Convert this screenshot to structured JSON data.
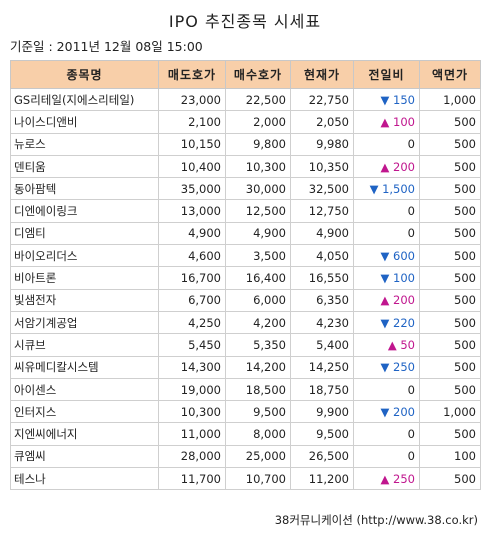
{
  "title": "IPO 추진종목 시세표",
  "base_date": "기준일 : 2011년 12월 08일 15:00",
  "headers": [
    "종목명",
    "매도호가",
    "매수호가",
    "현재가",
    "전일비",
    "액면가"
  ],
  "rows": [
    {
      "name": "GS리테일(지에스리테일)",
      "ask": "23,000",
      "bid": "22,500",
      "price": "22,750",
      "dir": "down",
      "change": "150",
      "par": "1,000"
    },
    {
      "name": "나이스디앤비",
      "ask": "2,100",
      "bid": "2,000",
      "price": "2,050",
      "dir": "up",
      "change": "100",
      "par": "500"
    },
    {
      "name": "뉴로스",
      "ask": "10,150",
      "bid": "9,800",
      "price": "9,980",
      "dir": "",
      "change": "0",
      "par": "500"
    },
    {
      "name": "덴티움",
      "ask": "10,400",
      "bid": "10,300",
      "price": "10,350",
      "dir": "up",
      "change": "200",
      "par": "500"
    },
    {
      "name": "동아팜텍",
      "ask": "35,000",
      "bid": "30,000",
      "price": "32,500",
      "dir": "down",
      "change": "1,500",
      "par": "500"
    },
    {
      "name": "디엔에이링크",
      "ask": "13,000",
      "bid": "12,500",
      "price": "12,750",
      "dir": "",
      "change": "0",
      "par": "500"
    },
    {
      "name": "디엠티",
      "ask": "4,900",
      "bid": "4,900",
      "price": "4,900",
      "dir": "",
      "change": "0",
      "par": "500"
    },
    {
      "name": "바이오리더스",
      "ask": "4,600",
      "bid": "3,500",
      "price": "4,050",
      "dir": "down",
      "change": "600",
      "par": "500"
    },
    {
      "name": "비아트론",
      "ask": "16,700",
      "bid": "16,400",
      "price": "16,550",
      "dir": "down",
      "change": "100",
      "par": "500"
    },
    {
      "name": "빛샘전자",
      "ask": "6,700",
      "bid": "6,000",
      "price": "6,350",
      "dir": "up",
      "change": "200",
      "par": "500"
    },
    {
      "name": "서암기계공업",
      "ask": "4,250",
      "bid": "4,200",
      "price": "4,230",
      "dir": "down",
      "change": "220",
      "par": "500"
    },
    {
      "name": "시큐브",
      "ask": "5,450",
      "bid": "5,350",
      "price": "5,400",
      "dir": "up",
      "change": "50",
      "par": "500"
    },
    {
      "name": "씨유메디칼시스템",
      "ask": "14,300",
      "bid": "14,200",
      "price": "14,250",
      "dir": "down",
      "change": "250",
      "par": "500"
    },
    {
      "name": "아이센스",
      "ask": "19,000",
      "bid": "18,500",
      "price": "18,750",
      "dir": "",
      "change": "0",
      "par": "500"
    },
    {
      "name": "인터지스",
      "ask": "10,300",
      "bid": "9,500",
      "price": "9,900",
      "dir": "down",
      "change": "200",
      "par": "1,000"
    },
    {
      "name": "지엔씨에너지",
      "ask": "11,000",
      "bid": "8,000",
      "price": "9,500",
      "dir": "",
      "change": "0",
      "par": "500"
    },
    {
      "name": "큐엠씨",
      "ask": "28,000",
      "bid": "25,000",
      "price": "26,500",
      "dir": "",
      "change": "0",
      "par": "100"
    },
    {
      "name": "테스나",
      "ask": "11,700",
      "bid": "10,700",
      "price": "11,200",
      "dir": "up",
      "change": "250",
      "par": "500"
    }
  ],
  "source": "38커뮤니케이션 (http://www.38.co.kr)",
  "colors": {
    "header_bg": "#f8cfa9",
    "up": "#c0168e",
    "down": "#1f63c4"
  },
  "arrows": {
    "up": "▲",
    "down": "▼"
  }
}
